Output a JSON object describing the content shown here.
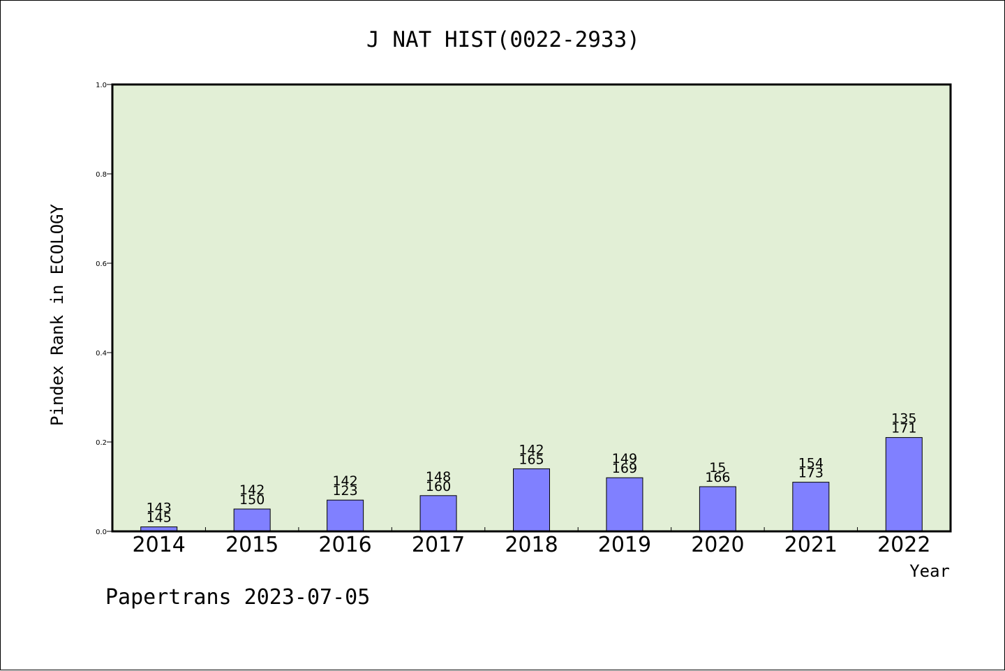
{
  "chart_data": {
    "type": "bar",
    "title": "J NAT HIST(0022-2933)",
    "xlabel": "Year",
    "ylabel": "Pindex Rank in ECOLOGY",
    "ylim": [
      0,
      1.0
    ],
    "yticks": [
      "0.0",
      "0.2",
      "0.4",
      "0.6",
      "0.8",
      "1.0"
    ],
    "categories": [
      "2014",
      "2015",
      "2016",
      "2017",
      "2018",
      "2019",
      "2020",
      "2021",
      "2022"
    ],
    "values": [
      0.01,
      0.05,
      0.07,
      0.08,
      0.14,
      0.12,
      0.1,
      0.11,
      0.21
    ],
    "labels_top": [
      "143",
      "142",
      "142",
      "148",
      "142",
      "149",
      "15",
      "154",
      "135"
    ],
    "labels_bottom": [
      "145",
      "150",
      "123",
      "160",
      "165",
      "169",
      "166",
      "173",
      "171"
    ],
    "grid": false,
    "legend": false
  },
  "footer": "Papertrans 2023-07-05",
  "colors": {
    "plot_background": "#e2efd6",
    "bar_fill": "#8080ff",
    "bar_stroke": "#000000"
  }
}
